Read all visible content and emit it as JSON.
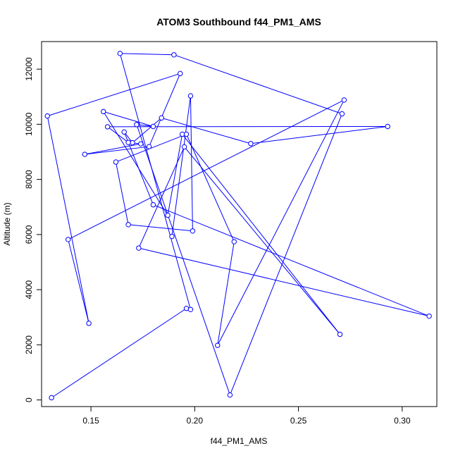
{
  "chart_data": {
    "type": "scatter",
    "title": "ATOM3 Southbound f44_PM1_AMS",
    "xlabel": "f44_PM1_AMS",
    "ylabel": "Altitude (m)",
    "xlim": [
      0.1262,
      0.3167
    ],
    "ylim": [
      -240,
      13000
    ],
    "x_ticks": [
      {
        "value": 0.15,
        "label": "0.15"
      },
      {
        "value": 0.2,
        "label": "0.20"
      },
      {
        "value": 0.25,
        "label": "0.25"
      },
      {
        "value": 0.3,
        "label": "0.30"
      }
    ],
    "y_ticks": [
      {
        "value": 0,
        "label": "0"
      },
      {
        "value": 2000,
        "label": "2000"
      },
      {
        "value": 4000,
        "label": "4000"
      },
      {
        "value": 6000,
        "label": "6000"
      },
      {
        "value": 8000,
        "label": "8000"
      },
      {
        "value": 10000,
        "label": "10000"
      },
      {
        "value": 12000,
        "label": "12000"
      }
    ],
    "grid": false,
    "legend": "none",
    "series_color": "#0000ff",
    "points": [
      {
        "x": 0.131,
        "y": 80
      },
      {
        "x": 0.196,
        "y": 3320
      },
      {
        "x": 0.198,
        "y": 3280
      },
      {
        "x": 0.164,
        "y": 12570
      },
      {
        "x": 0.19,
        "y": 12520
      },
      {
        "x": 0.271,
        "y": 10380
      },
      {
        "x": 0.217,
        "y": 180
      },
      {
        "x": 0.172,
        "y": 9990
      },
      {
        "x": 0.18,
        "y": 9920
      },
      {
        "x": 0.156,
        "y": 10460
      },
      {
        "x": 0.187,
        "y": 6700
      },
      {
        "x": 0.194,
        "y": 9640
      },
      {
        "x": 0.27,
        "y": 2380
      },
      {
        "x": 0.195,
        "y": 9180
      },
      {
        "x": 0.173,
        "y": 5510
      },
      {
        "x": 0.313,
        "y": 3040
      },
      {
        "x": 0.18,
        "y": 7080
      },
      {
        "x": 0.166,
        "y": 9720
      },
      {
        "x": 0.17,
        "y": 9330
      },
      {
        "x": 0.184,
        "y": 10230
      },
      {
        "x": 0.227,
        "y": 9300
      },
      {
        "x": 0.293,
        "y": 9920
      },
      {
        "x": 0.158,
        "y": 9910
      },
      {
        "x": 0.168,
        "y": 9340
      },
      {
        "x": 0.174,
        "y": 9290
      },
      {
        "x": 0.147,
        "y": 8910
      },
      {
        "x": 0.178,
        "y": 9190
      },
      {
        "x": 0.193,
        "y": 11840
      },
      {
        "x": 0.129,
        "y": 10300
      },
      {
        "x": 0.149,
        "y": 2780
      },
      {
        "x": 0.139,
        "y": 5820
      },
      {
        "x": 0.272,
        "y": 10880
      },
      {
        "x": 0.211,
        "y": 1980
      },
      {
        "x": 0.219,
        "y": 5740
      },
      {
        "x": 0.196,
        "y": 9640
      },
      {
        "x": 0.162,
        "y": 8630
      },
      {
        "x": 0.168,
        "y": 6360
      },
      {
        "x": 0.199,
        "y": 6130
      },
      {
        "x": 0.198,
        "y": 11030
      },
      {
        "x": 0.189,
        "y": 5930
      }
    ]
  }
}
